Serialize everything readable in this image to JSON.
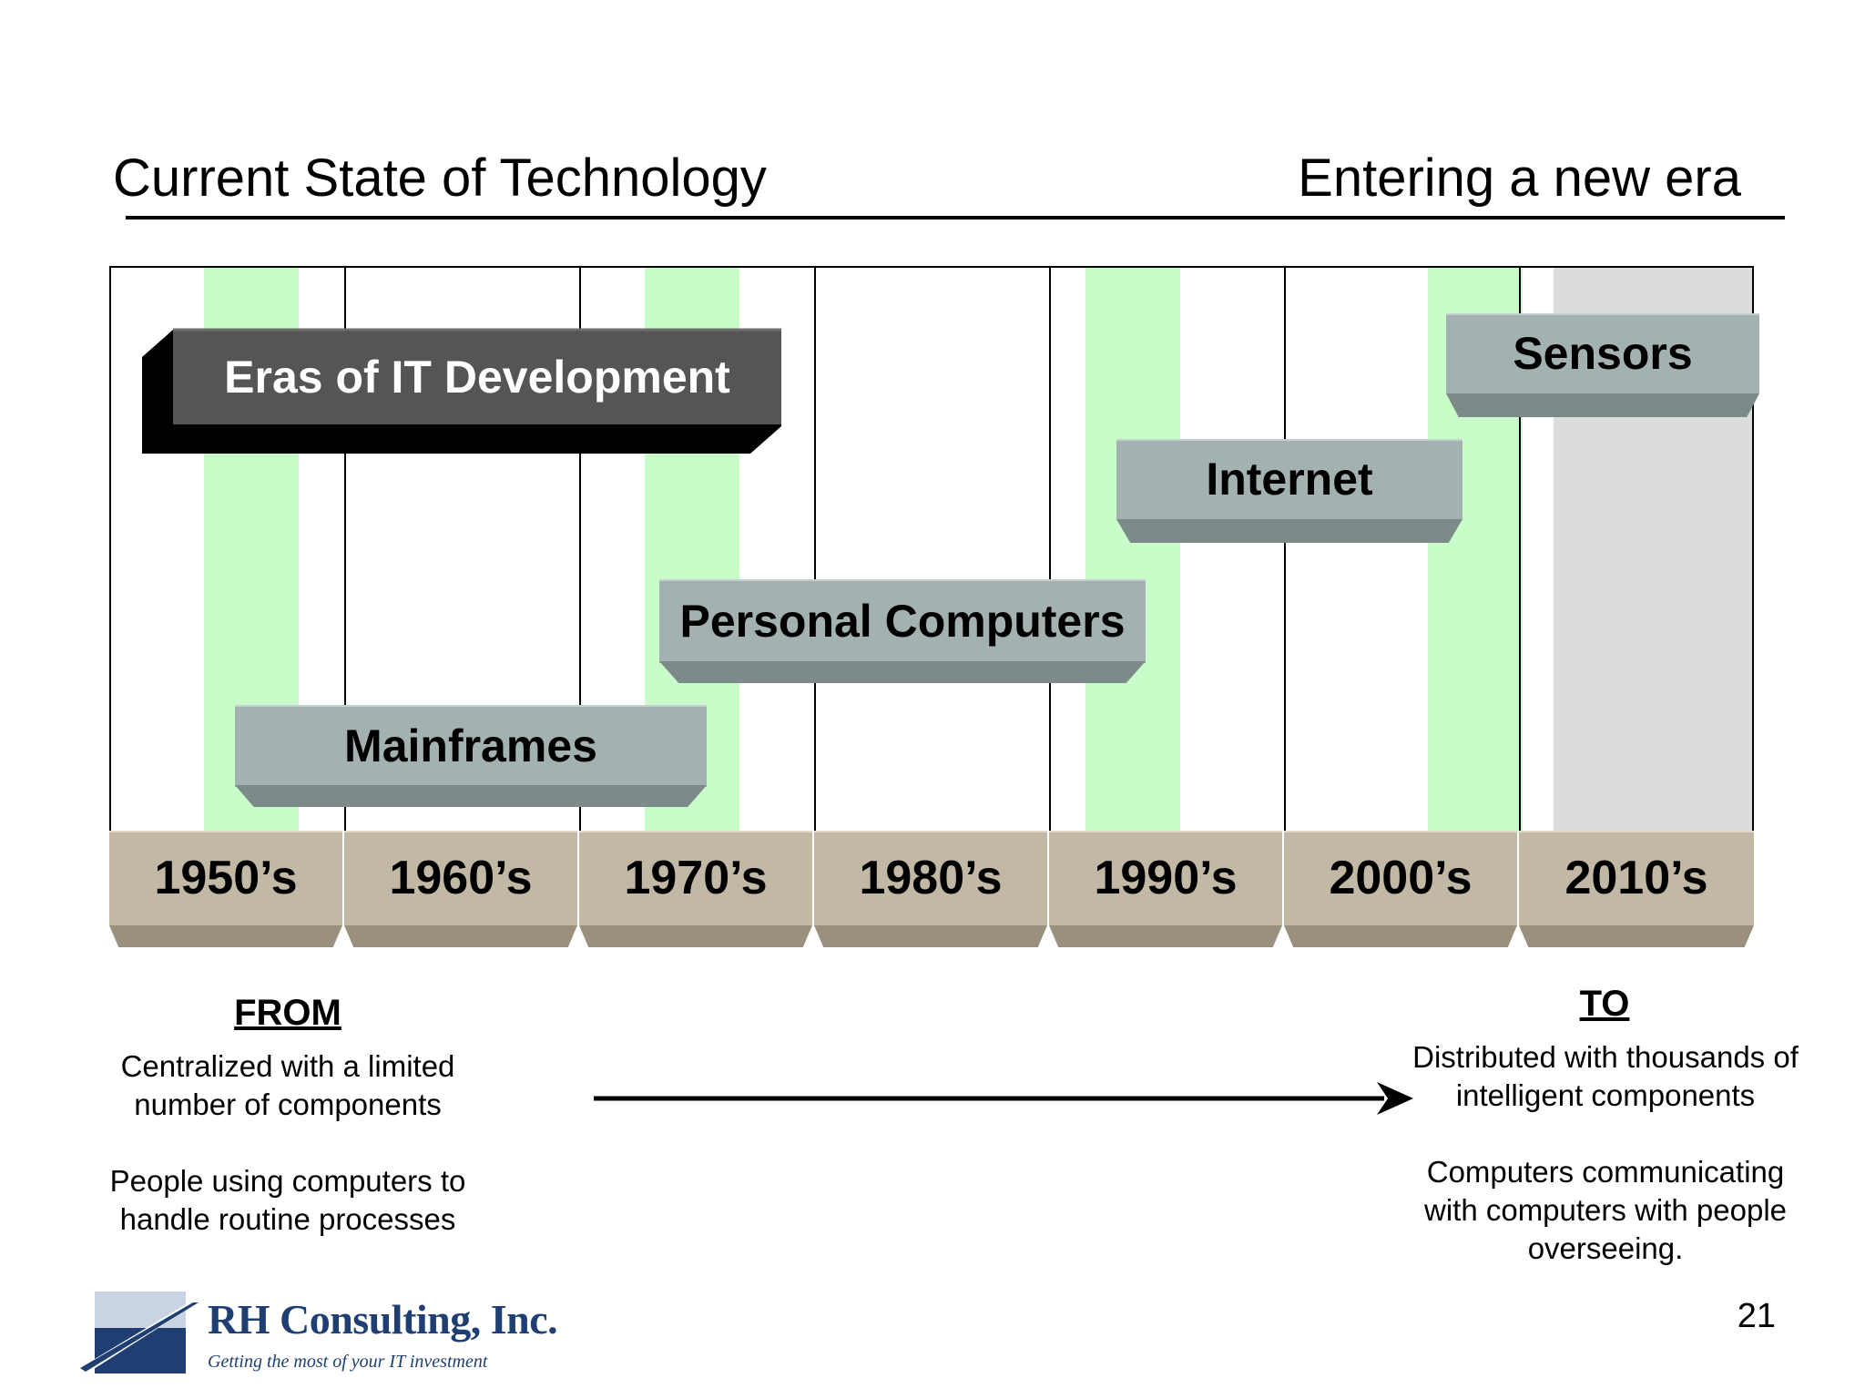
{
  "header": {
    "left_title": "Current State of Technology",
    "right_title": "Entering a new era"
  },
  "timeline": {
    "heading": "Eras of IT Development",
    "decades": [
      "1950’s",
      "1960’s",
      "1970’s",
      "1980’s",
      "1990’s",
      "2000’s",
      "2010’s"
    ],
    "eras": [
      {
        "label": "Mainframes",
        "start_decade": "1950’s",
        "end_decade": "1970’s"
      },
      {
        "label": "Personal Computers",
        "start_decade": "1970’s",
        "end_decade": "1990’s"
      },
      {
        "label": "Internet",
        "start_decade": "1990’s",
        "end_decade": "2000’s"
      },
      {
        "label": "Sensors",
        "start_decade": "2000’s",
        "end_decade": "2010’s"
      }
    ]
  },
  "from": {
    "title": "FROM",
    "line1": "Centralized with a limited number of components",
    "line2": "People using computers to handle routine processes"
  },
  "to": {
    "title": "TO",
    "line1": "Distributed with thousands of intelligent components",
    "line2": "Computers communicating with computers with people overseeing."
  },
  "page_number": "21",
  "logo": {
    "name": "RH Consulting, Inc.",
    "tagline": "Getting the most of your IT investment"
  },
  "colors": {
    "highlight_green": "#c8fcc8",
    "future_gray": "#dcdcdc",
    "era_bar": "#a3b1b1",
    "decade_bar": "#c2b8a6",
    "heading_bar": "#555555",
    "logo_blue": "#1f3f73"
  }
}
